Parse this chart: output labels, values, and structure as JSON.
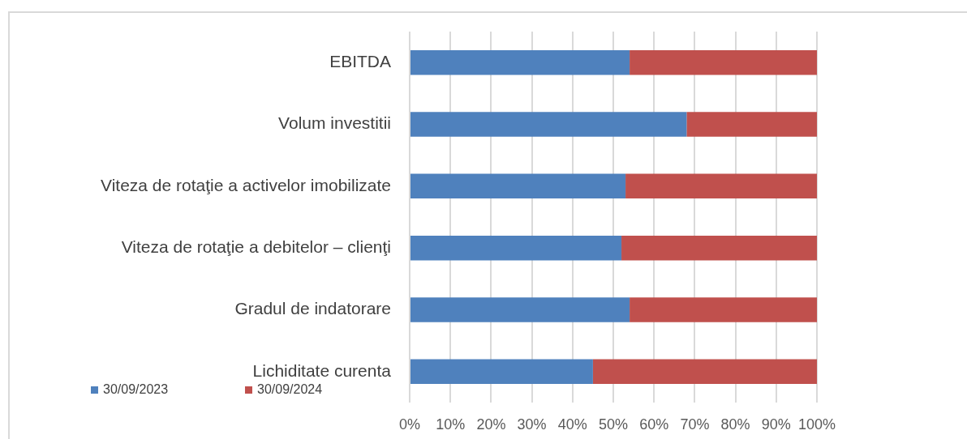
{
  "chart_data": {
    "type": "bar",
    "orientation": "horizontal",
    "stacked": true,
    "categories": [
      "EBITDA",
      "Volum investitii",
      "Viteza de rotaţie a activelor imobilizate",
      "Viteza de rotaţie a debitelor – clienţi",
      "Gradul de indatorare",
      "Lichiditate curenta"
    ],
    "series": [
      {
        "name": "30/09/2023",
        "color": "#4f81bd",
        "values": [
          54,
          68,
          53,
          52,
          54,
          45
        ]
      },
      {
        "name": "30/09/2024",
        "color": "#c0504d",
        "values": [
          46,
          32,
          47,
          48,
          46,
          55
        ]
      }
    ],
    "xlim": [
      0,
      100
    ],
    "xticks": [
      {
        "value": 0,
        "label": "0%"
      },
      {
        "value": 10,
        "label": "10%"
      },
      {
        "value": 20,
        "label": "20%"
      },
      {
        "value": 30,
        "label": "30%"
      },
      {
        "value": 40,
        "label": "40%"
      },
      {
        "value": 50,
        "label": "50%"
      },
      {
        "value": 60,
        "label": "60%"
      },
      {
        "value": 70,
        "label": "70%"
      },
      {
        "value": 80,
        "label": "80%"
      },
      {
        "value": 90,
        "label": "90%"
      },
      {
        "value": 100,
        "label": "100%"
      }
    ],
    "grid": "x",
    "legend": "bottom left"
  }
}
